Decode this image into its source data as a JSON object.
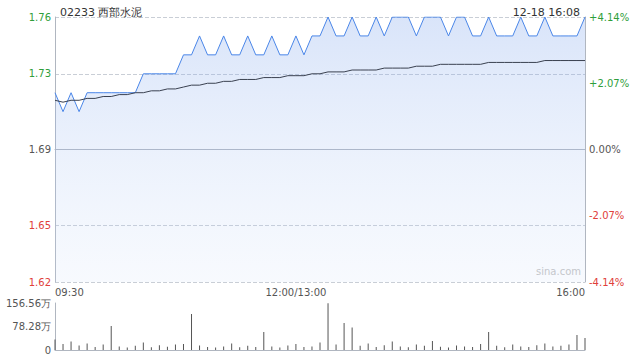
{
  "chart_data": [
    {
      "type": "line",
      "title": "02233 西部水泥",
      "subtitle": "12-18 16:08",
      "annotations": [
        "sina.com"
      ],
      "categories": [
        "09:30",
        null,
        null,
        null,
        null,
        null,
        null,
        null,
        null,
        null,
        null,
        null,
        null,
        null,
        null,
        null,
        null,
        null,
        null,
        null,
        null,
        null,
        null,
        null,
        null,
        null,
        null,
        null,
        null,
        null,
        "12:00/13:00",
        null,
        null,
        null,
        null,
        null,
        null,
        null,
        null,
        null,
        null,
        null,
        null,
        null,
        null,
        null,
        null,
        null,
        null,
        null,
        null,
        null,
        null,
        null,
        null,
        null,
        null,
        null,
        null,
        null,
        null,
        null,
        null,
        null,
        null,
        null,
        "16:00"
      ],
      "series": [
        {
          "color": "#4a86e8",
          "type": "line",
          "values": [
            1.72,
            1.71,
            1.72,
            1.71,
            1.72,
            1.72,
            1.72,
            1.72,
            1.72,
            1.72,
            1.72,
            1.73,
            1.73,
            1.73,
            1.73,
            1.73,
            1.74,
            1.74,
            1.75,
            1.74,
            1.74,
            1.75,
            1.74,
            1.74,
            1.75,
            1.74,
            1.74,
            1.75,
            1.74,
            1.74,
            1.75,
            1.74,
            1.75,
            1.75,
            1.76,
            1.75,
            1.75,
            1.76,
            1.75,
            1.75,
            1.76,
            1.75,
            1.76,
            1.76,
            1.76,
            1.75,
            1.76,
            1.76,
            1.76,
            1.75,
            1.76,
            1.76,
            1.75,
            1.75,
            1.76,
            1.75,
            1.75,
            1.75,
            1.76,
            1.75,
            1.75,
            1.76,
            1.75,
            1.75,
            1.75,
            1.75,
            1.76
          ]
        },
        {
          "color": "#3a4150",
          "type": "line",
          "values": [
            1.716,
            1.715,
            1.716,
            1.716,
            1.717,
            1.717,
            1.718,
            1.718,
            1.719,
            1.719,
            1.72,
            1.72,
            1.721,
            1.721,
            1.722,
            1.722,
            1.723,
            1.724,
            1.724,
            1.725,
            1.725,
            1.726,
            1.726,
            1.727,
            1.727,
            1.727,
            1.728,
            1.728,
            1.728,
            1.729,
            1.729,
            1.729,
            1.73,
            1.73,
            1.731,
            1.731,
            1.731,
            1.732,
            1.732,
            1.732,
            1.732,
            1.733,
            1.733,
            1.733,
            1.733,
            1.734,
            1.734,
            1.734,
            1.735,
            1.735,
            1.735,
            1.735,
            1.735,
            1.735,
            1.736,
            1.736,
            1.736,
            1.736,
            1.736,
            1.736,
            1.736,
            1.737,
            1.737,
            1.737,
            1.737,
            1.737,
            1.737
          ]
        }
      ],
      "ylim": [
        1.62,
        1.76
      ],
      "yticks": [
        1.62,
        1.65,
        1.69,
        1.73,
        1.76
      ],
      "y2lim": [
        -4.14,
        4.14
      ],
      "y2ticks": [
        {
          "value": -4.14,
          "label": "-4.14%"
        },
        {
          "value": -2.07,
          "label": "-2.07%"
        },
        {
          "value": 0,
          "label": "0.00%"
        },
        {
          "value": 2.07,
          "label": "+2.07%"
        },
        {
          "value": 4.14,
          "label": "+4.14%"
        }
      ],
      "grid": true
    },
    {
      "type": "bar",
      "categories": [
        "09:30",
        null,
        null,
        null,
        null,
        null,
        null,
        null,
        null,
        null,
        null,
        null,
        null,
        null,
        null,
        null,
        null,
        null,
        null,
        null,
        null,
        null,
        null,
        null,
        null,
        null,
        null,
        null,
        null,
        null,
        "12:00/13:00",
        null,
        null,
        null,
        null,
        null,
        null,
        null,
        null,
        null,
        null,
        null,
        null,
        null,
        null,
        null,
        null,
        null,
        null,
        null,
        null,
        null,
        null,
        null,
        null,
        null,
        null,
        null,
        null,
        null,
        null,
        null,
        null,
        null,
        null,
        null,
        "16:00"
      ],
      "values": [
        35,
        20,
        28,
        15,
        22,
        10,
        18,
        80,
        12,
        8,
        14,
        25,
        9,
        16,
        11,
        18,
        20,
        120,
        15,
        10,
        8,
        12,
        22,
        9,
        14,
        10,
        60,
        12,
        8,
        15,
        20,
        10,
        12,
        25,
        156,
        18,
        90,
        75,
        14,
        22,
        10,
        16,
        28,
        12,
        9,
        18,
        14,
        30,
        11,
        8,
        15,
        12,
        10,
        20,
        60,
        14,
        9,
        18,
        12,
        10,
        16,
        22,
        12,
        14,
        18,
        50,
        40
      ],
      "color": "#555555",
      "ylim": [
        0,
        156.56
      ],
      "yticks": [
        0,
        {
          "value": 78.28,
          "label": "78.28万"
        },
        {
          "value": 156.56,
          "label": "156.56万"
        }
      ],
      "tick_labels": "y",
      "grid": false
    }
  ]
}
